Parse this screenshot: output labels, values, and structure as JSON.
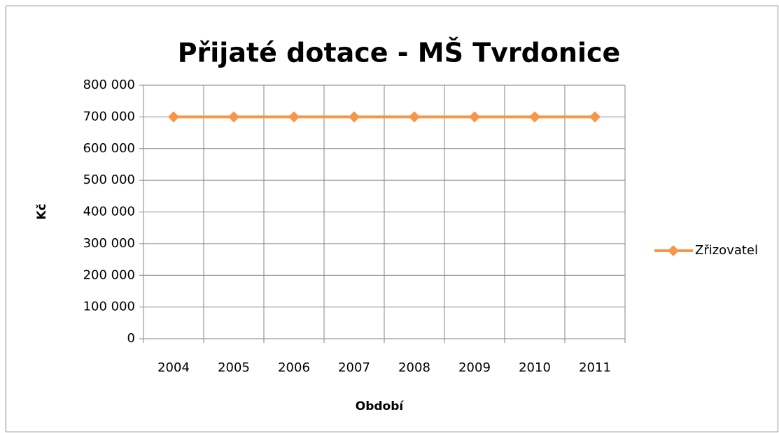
{
  "chart_data": {
    "type": "line",
    "title": "Přijaté dotace - MŠ Tvrdonice",
    "x_label": "Období",
    "y_label": "Kč",
    "categories": [
      "2004",
      "2005",
      "2006",
      "2007",
      "2008",
      "2009",
      "2010",
      "2011"
    ],
    "series": [
      {
        "name": "Zřizovatel",
        "color": "#f79646",
        "values": [
          700000,
          700000,
          700000,
          700000,
          700000,
          700000,
          700000,
          700000
        ]
      }
    ],
    "ylim": [
      0,
      800000
    ],
    "yticks": [
      0,
      {
        "value": 100000,
        "label": "100 000"
      },
      {
        "value": 200000,
        "label": "200 000"
      },
      {
        "value": 300000,
        "label": "300 000"
      },
      {
        "value": 400000,
        "label": "400 000"
      },
      {
        "value": 500000,
        "label": "500 000"
      },
      {
        "value": 600000,
        "label": "600 000"
      },
      {
        "value": 700000,
        "label": "700 000"
      },
      {
        "value": 800000,
        "label": "800 000"
      }
    ],
    "grid": true,
    "legend": "right"
  }
}
